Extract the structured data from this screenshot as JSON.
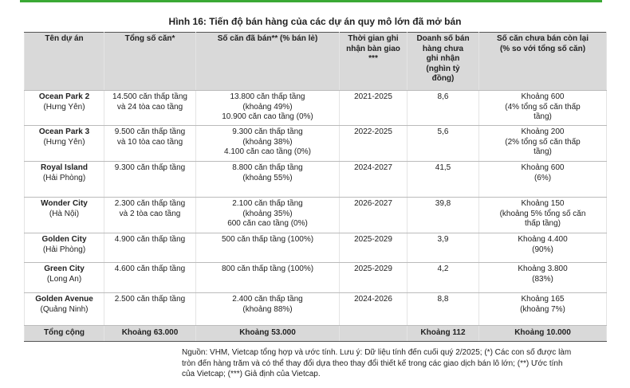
{
  "title": "Hình 16: Tiến độ bán hàng của các dự án quy mô lớn đã mở bán",
  "table": {
    "header": [
      [
        "Tên dự án"
      ],
      [
        "Tổng số căn*"
      ],
      [
        "Số căn đã bán** (% bán lẻ)"
      ],
      [
        "Thời gian ghi",
        "nhận bàn giao",
        "***"
      ],
      [
        "Doanh số bán",
        "hàng chưa",
        "ghi nhận",
        "(nghìn tỷ",
        "đồng)"
      ],
      [
        "Số căn chưa bán còn lại",
        "(% so với tổng số căn)"
      ]
    ],
    "rows": [
      [
        [
          "Ocean Park 2",
          "(Hưng Yên)"
        ],
        [
          "14.500 căn thấp tầng",
          "và 24 tòa cao tầng"
        ],
        [
          "13.800 căn thấp tầng",
          "(khoảng 49%)",
          "10.900 căn cao tầng (0%)"
        ],
        [
          "2021-2025"
        ],
        [
          "8,6"
        ],
        [
          "Khoảng 600",
          "(4% tổng số căn thấp",
          "tầng)"
        ]
      ],
      [
        [
          "Ocean Park 3",
          "(Hưng Yên)"
        ],
        [
          "9.500 căn thấp tầng",
          "và 10 tòa cao tầng"
        ],
        [
          "9.300 căn thấp tầng",
          "(khoảng 38%)",
          "4.100 căn cao tầng (0%)"
        ],
        [
          "2022-2025"
        ],
        [
          "5,6"
        ],
        [
          "Khoảng 200",
          "(2% tổng số căn thấp",
          "tầng)"
        ]
      ],
      [
        [
          "Royal Island",
          "(Hải Phòng)"
        ],
        [
          "9.300 căn thấp tầng"
        ],
        [
          "8.800 căn thấp tầng",
          "(khoảng 55%)"
        ],
        [
          "2024-2027"
        ],
        [
          "41,5"
        ],
        [
          "Khoảng 600",
          "(6%)"
        ]
      ],
      [
        [
          "Wonder City",
          "(Hà Nội)"
        ],
        [
          "2.300 căn thấp tầng",
          "và 2 tòa cao tầng"
        ],
        [
          "2.100 căn thấp tầng",
          "(khoảng 35%)",
          "600 căn cao tầng (0%)"
        ],
        [
          "2026-2027"
        ],
        [
          "39,8"
        ],
        [
          "Khoảng 150",
          "(khoảng 5% tổng số căn",
          "thấp tầng)"
        ]
      ],
      [
        [
          "Golden City",
          "(Hải Phòng)"
        ],
        [
          "4.900 căn thấp tầng"
        ],
        [
          "500 căn thấp tầng (100%)"
        ],
        [
          "2025-2029"
        ],
        [
          "3,9"
        ],
        [
          "Khoảng 4.400",
          "(90%)"
        ]
      ],
      [
        [
          "Green City",
          "(Long An)"
        ],
        [
          "4.600 căn thấp tầng"
        ],
        [
          "800 căn thấp tầng (100%)"
        ],
        [
          "2025-2029"
        ],
        [
          "4,2"
        ],
        [
          "Khoảng 3.800",
          "(83%)"
        ]
      ],
      [
        [
          "Golden Avenue",
          "(Quảng Ninh)"
        ],
        [
          "2.500 căn thấp tầng"
        ],
        [
          "2.400 căn thấp tầng",
          "(khoảng 88%)"
        ],
        [
          "2024-2026"
        ],
        [
          "8,8"
        ],
        [
          "Khoảng 165",
          "(khoảng 7%)"
        ]
      ]
    ],
    "total": {
      "label": "Tổng cộng",
      "total": "Khoảng 63.000",
      "sold": "Khoảng 53.000",
      "revenue": "Khoảng 112",
      "unsold": "Khoảng 10.000"
    }
  },
  "footnote": [
    "Nguồn: VHM, Vietcap tổng hợp và ước tính. Lưu ý: Dữ liệu tính đến cuối quý 2/2025; (*) Các con số được làm",
    "tròn đến hàng trăm và có thể thay đổi dựa theo thay đổi thiết kế trong các giao dịch bán lô lớn; (**) Ước tính",
    "của Vietcap; (***) Giả định của Vietcap."
  ]
}
